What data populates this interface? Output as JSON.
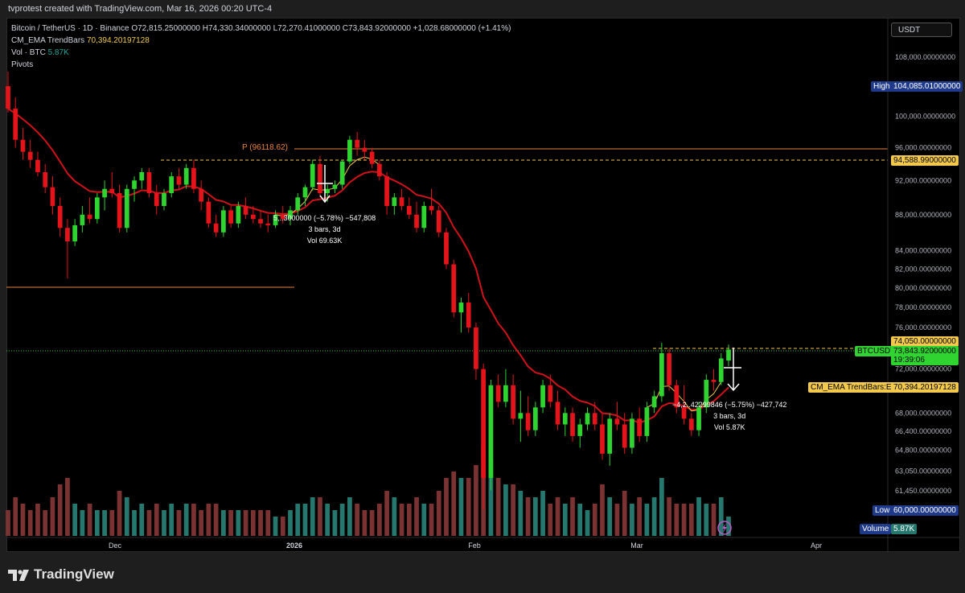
{
  "header": {
    "title": "tvprotest created with TradingView.com, Mar 16, 2026 00:20 UTC-4"
  },
  "legend": {
    "symbol": "Bitcoin / TetherUS · 1D · Binance",
    "ohlc": "O72,815.25000000 H74,330.34000000 L72,270.41000000 C73,843.92000000",
    "change": "+1,028.68000000 (+1.41%)",
    "ema_name": "CM_EMA TrendBars",
    "ema_value": "70,394.20197128",
    "vol_name": "Vol · BTC",
    "vol_value": "5.87K",
    "pivots": "Pivots"
  },
  "currency_button": "USDT",
  "price_axis": {
    "ticks": [
      "108,000.00000000",
      "104,000.00000000",
      "100,000.00000000",
      "96,000.00000000",
      "92,000.00000000",
      "88,000.00000000",
      "84,000.00000000",
      "82,000.00000000",
      "80,000.00000000",
      "78,000.00000000",
      "76,000.00000000",
      "72,000.00000000",
      "68,000.00000000",
      "66,400.00000000",
      "64,800.00000000",
      "63,050.00000000",
      "61,450.00000000",
      "60,000.00000000"
    ],
    "labels": {
      "high_tag": "High",
      "high_value": "104,085.01000000",
      "line1_value": "94,588.99000000",
      "line2_value": "74,050.00000000",
      "symbol_tag": "BTCUSDT",
      "last_value": "73,843.92000000",
      "countdown": "19:39:06",
      "ema_tag": "CM_EMA TrendBars:EMA",
      "ema_value": "70,394.20197128",
      "low_tag": "Low",
      "low_value": "60,000.00000000",
      "vol_tag": "Volume",
      "vol_value": "5.87K"
    }
  },
  "time_axis": {
    "ticks": [
      "Dec",
      "2026",
      "Feb",
      "Mar",
      "Apr"
    ]
  },
  "pivot_label": "P (96118.62)",
  "measure1": {
    "line1": "5,..3000000 (−5.78%) −547,808",
    "line2": "3 bars, 3d",
    "line3": "Vol 69.63K"
  },
  "measure2": {
    "line1": "−4,2..42299846 (−5.75%) −427,742",
    "line2": "3 bars, 3d",
    "line3": "Vol 5.87K"
  },
  "footer": {
    "brand": "TradingView"
  },
  "chart_data": {
    "type": "candlestick",
    "symbol": "BTCUSDT",
    "interval": "1D",
    "price_scale": "log",
    "ylim": [
      60000,
      108000
    ],
    "colors": {
      "up": "#2fd431",
      "down": "#e5141a",
      "ema": "#d1121b",
      "signal": "#f2c94c",
      "vol_up": "#26786e",
      "vol_down": "#7a3232"
    },
    "candles": [
      [
        104000,
        106000,
        100500,
        101000,
        4
      ],
      [
        101000,
        102500,
        96000,
        97000,
        6
      ],
      [
        97000,
        98500,
        94500,
        95500,
        5
      ],
      [
        95500,
        97000,
        93500,
        94500,
        4
      ],
      [
        94500,
        95500,
        92500,
        93000,
        5
      ],
      [
        93000,
        94000,
        90500,
        91200,
        4
      ],
      [
        91200,
        92500,
        88000,
        89000,
        6
      ],
      [
        89000,
        90000,
        85500,
        86500,
        8
      ],
      [
        86500,
        87500,
        81000,
        85000,
        9
      ],
      [
        85000,
        87500,
        84500,
        86800,
        5
      ],
      [
        86800,
        89000,
        86000,
        88000,
        4
      ],
      [
        88000,
        90000,
        87000,
        87500,
        5
      ],
      [
        87500,
        90500,
        87000,
        90000,
        4
      ],
      [
        90000,
        92000,
        88500,
        91000,
        4
      ],
      [
        91000,
        93000,
        90000,
        90500,
        4
      ],
      [
        90500,
        91500,
        86000,
        86500,
        7
      ],
      [
        86500,
        91500,
        86000,
        91000,
        6
      ],
      [
        91000,
        92500,
        89500,
        92000,
        4
      ],
      [
        92000,
        93500,
        91000,
        93000,
        5
      ],
      [
        93000,
        93500,
        90000,
        90500,
        4
      ],
      [
        90500,
        91500,
        88000,
        89000,
        5
      ],
      [
        89000,
        91000,
        88500,
        90500,
        4
      ],
      [
        90500,
        93000,
        90000,
        92500,
        5
      ],
      [
        92500,
        93500,
        91000,
        91500,
        4
      ],
      [
        91500,
        94000,
        91000,
        93500,
        5
      ],
      [
        93500,
        94500,
        90500,
        91000,
        5
      ],
      [
        91000,
        92000,
        88500,
        89500,
        4
      ],
      [
        89500,
        90000,
        86500,
        87000,
        5
      ],
      [
        87000,
        88000,
        85500,
        86000,
        5
      ],
      [
        86000,
        89000,
        85500,
        88500,
        4
      ],
      [
        88500,
        89000,
        86500,
        87000,
        4
      ],
      [
        87000,
        89500,
        86500,
        89000,
        4
      ],
      [
        89000,
        90000,
        87500,
        88000,
        4
      ],
      [
        88000,
        89000,
        87000,
        87500,
        4
      ],
      [
        87500,
        88500,
        86500,
        87000,
        4
      ],
      [
        87000,
        88000,
        86000,
        86800,
        4
      ],
      [
        86800,
        88500,
        86500,
        88000,
        3
      ],
      [
        88000,
        89000,
        87000,
        87500,
        3
      ],
      [
        87500,
        89000,
        86800,
        88500,
        4
      ],
      [
        88500,
        90500,
        88000,
        90000,
        5
      ],
      [
        90000,
        91500,
        89000,
        91200,
        5
      ],
      [
        91200,
        94500,
        90800,
        94000,
        6
      ],
      [
        94000,
        95000,
        90000,
        90500,
        6
      ],
      [
        90500,
        91500,
        89500,
        91000,
        5
      ],
      [
        91000,
        92000,
        90500,
        91500,
        4
      ],
      [
        91500,
        94500,
        91000,
        94300,
        5
      ],
      [
        94300,
        97500,
        94000,
        97000,
        6
      ],
      [
        97000,
        98000,
        95000,
        96000,
        5
      ],
      [
        96000,
        97000,
        94500,
        95500,
        4
      ],
      [
        95500,
        96000,
        93500,
        94000,
        4
      ],
      [
        94000,
        94500,
        92000,
        92500,
        5
      ],
      [
        92500,
        93000,
        88000,
        89000,
        7
      ],
      [
        89000,
        90500,
        88000,
        90000,
        6
      ],
      [
        90000,
        91000,
        88500,
        89000,
        5
      ],
      [
        89000,
        90000,
        87500,
        88000,
        5
      ],
      [
        88000,
        89500,
        86000,
        86500,
        6
      ],
      [
        86500,
        89500,
        86000,
        89000,
        5
      ],
      [
        89000,
        91000,
        88000,
        88500,
        5
      ],
      [
        88500,
        89000,
        85500,
        86000,
        7
      ],
      [
        86000,
        86500,
        82000,
        82500,
        9
      ],
      [
        82500,
        83000,
        77000,
        77500,
        10
      ],
      [
        77500,
        79000,
        75500,
        78500,
        9
      ],
      [
        78500,
        79500,
        75500,
        76000,
        9
      ],
      [
        76000,
        76500,
        71000,
        72000,
        11
      ],
      [
        72000,
        72500,
        60000,
        62500,
        14
      ],
      [
        62500,
        71000,
        61500,
        70500,
        12
      ],
      [
        70500,
        71500,
        68500,
        69000,
        9
      ],
      [
        69000,
        72000,
        68500,
        70500,
        8
      ],
      [
        70500,
        71500,
        67000,
        67500,
        8
      ],
      [
        67500,
        70000,
        65500,
        68000,
        7
      ],
      [
        68000,
        69500,
        66000,
        66500,
        6
      ],
      [
        66500,
        69000,
        66000,
        68500,
        6
      ],
      [
        68500,
        71000,
        68000,
        70500,
        7
      ],
      [
        70500,
        71500,
        68500,
        69000,
        5
      ],
      [
        69000,
        70000,
        66500,
        67000,
        6
      ],
      [
        67000,
        68500,
        66000,
        68000,
        5
      ],
      [
        68000,
        68500,
        65500,
        66000,
        6
      ],
      [
        66000,
        67500,
        65000,
        67000,
        5
      ],
      [
        67000,
        68500,
        66500,
        68000,
        4
      ],
      [
        68000,
        69000,
        66500,
        67000,
        5
      ],
      [
        67000,
        68000,
        64000,
        64500,
        8
      ],
      [
        64500,
        68000,
        63500,
        67500,
        6
      ],
      [
        67500,
        69000,
        66500,
        67000,
        5
      ],
      [
        67000,
        68000,
        64500,
        65000,
        7
      ],
      [
        65000,
        68000,
        64500,
        67500,
        5
      ],
      [
        67500,
        68500,
        65500,
        66000,
        6
      ],
      [
        66000,
        69000,
        65500,
        68500,
        5
      ],
      [
        68500,
        70000,
        68000,
        69500,
        6
      ],
      [
        69500,
        74500,
        69000,
        73500,
        9
      ],
      [
        73500,
        74000,
        70000,
        70500,
        6
      ],
      [
        70500,
        71000,
        68000,
        68500,
        5
      ],
      [
        68500,
        70500,
        67000,
        67500,
        5
      ],
      [
        67500,
        68000,
        66000,
        66500,
        5
      ],
      [
        66500,
        69000,
        66000,
        68500,
        6
      ],
      [
        68500,
        71500,
        68000,
        71000,
        5
      ],
      [
        71000,
        72000,
        70000,
        70800,
        5
      ],
      [
        70800,
        73500,
        70500,
        73000,
        6
      ],
      [
        72800,
        74330,
        72270,
        73844,
        3
      ]
    ]
  }
}
